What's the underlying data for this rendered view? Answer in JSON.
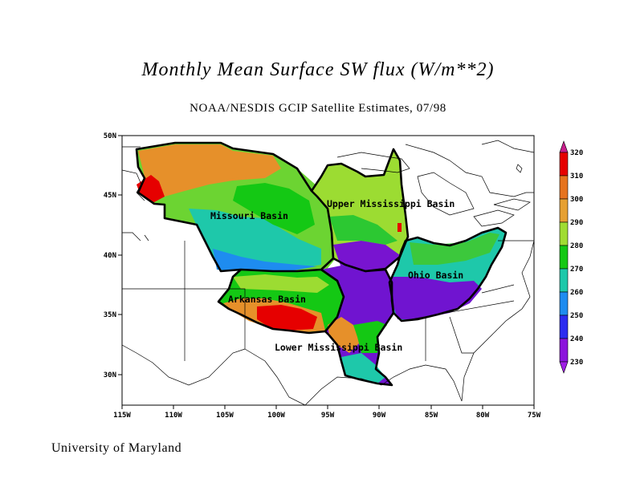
{
  "title": "Monthly Mean Surface SW flux (W/m**2)",
  "subtitle": "NOAA/NESDIS GCIP Satellite Estimates, 07/98",
  "credit": "University of Maryland",
  "lat_ticks": [
    "50N",
    "45N",
    "40N",
    "35N",
    "30N"
  ],
  "lon_ticks": [
    "115W",
    "110W",
    "105W",
    "100W",
    "95W",
    "90W",
    "85W",
    "80W",
    "75W"
  ],
  "basins": {
    "missouri": "Missouri Basin",
    "upper_mississippi": "Upper Mississippi Basin",
    "ohio": "Ohio Basin",
    "arkansas": "Arkansas Basin",
    "lower_mississippi": "Lower Mississippi Basin"
  },
  "colorbar": {
    "labels": [
      "320",
      "310",
      "300",
      "290",
      "280",
      "270",
      "260",
      "250",
      "240",
      "230"
    ],
    "colors": [
      "#c81e8c",
      "#e60000",
      "#e6731e",
      "#e6a032",
      "#a0dc32",
      "#14c814",
      "#1ec8aa",
      "#1e8cf0",
      "#2c2cf0",
      "#8c14dc",
      "#a01ee6"
    ]
  }
}
